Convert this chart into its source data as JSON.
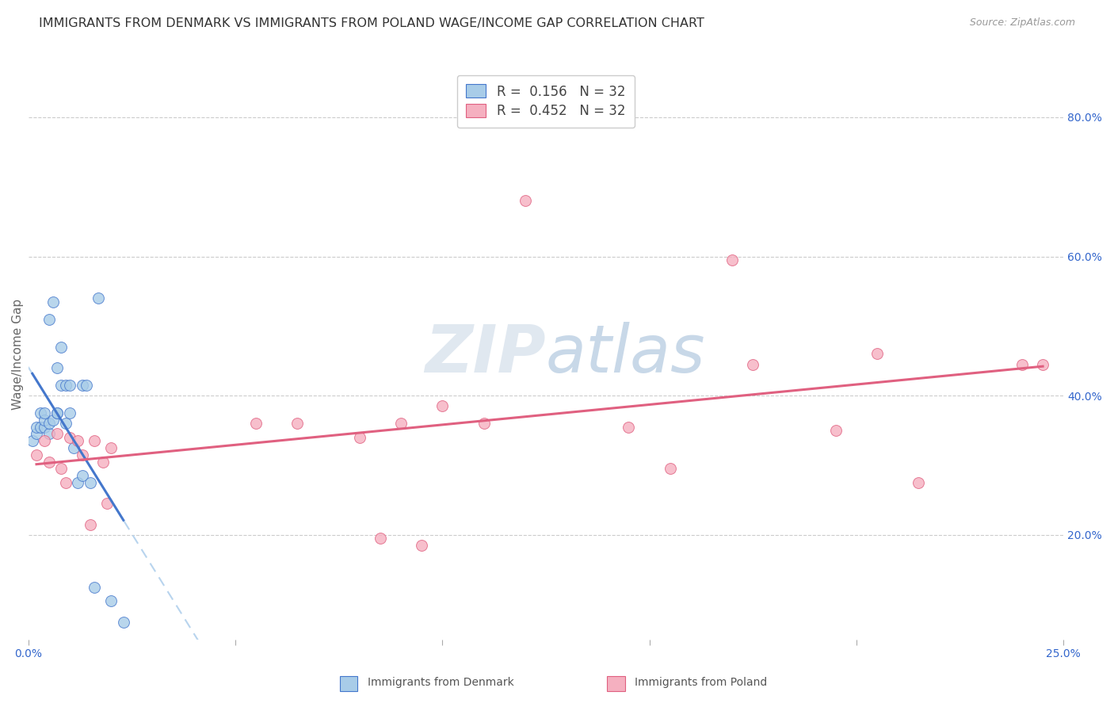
{
  "title": "IMMIGRANTS FROM DENMARK VS IMMIGRANTS FROM POLAND WAGE/INCOME GAP CORRELATION CHART",
  "source": "Source: ZipAtlas.com",
  "ylabel": "Wage/Income Gap",
  "xlim": [
    0.0,
    0.25
  ],
  "ylim": [
    0.05,
    0.87
  ],
  "xticks": [
    0.0,
    0.05,
    0.1,
    0.15,
    0.2,
    0.25
  ],
  "xtick_labels": [
    "0.0%",
    "",
    "",
    "",
    "",
    "25.0%"
  ],
  "yticks_right": [
    0.2,
    0.4,
    0.6,
    0.8
  ],
  "ytick_right_labels": [
    "20.0%",
    "40.0%",
    "60.0%",
    "80.0%"
  ],
  "denmark_R": 0.156,
  "denmark_N": 32,
  "poland_R": 0.452,
  "poland_N": 32,
  "denmark_color": "#a8cce8",
  "poland_color": "#f5b0c0",
  "trend_denmark_color": "#4477cc",
  "trend_poland_color": "#e06080",
  "trend_dashed_color": "#b8d4ee",
  "legend_denmark_label": "Immigrants from Denmark",
  "legend_poland_label": "Immigrants from Poland",
  "denmark_x": [
    0.001,
    0.002,
    0.002,
    0.003,
    0.003,
    0.004,
    0.004,
    0.004,
    0.005,
    0.005,
    0.005,
    0.006,
    0.006,
    0.007,
    0.007,
    0.007,
    0.008,
    0.008,
    0.009,
    0.009,
    0.01,
    0.01,
    0.011,
    0.012,
    0.013,
    0.013,
    0.014,
    0.015,
    0.016,
    0.017,
    0.02,
    0.023
  ],
  "denmark_y": [
    0.335,
    0.345,
    0.355,
    0.355,
    0.375,
    0.355,
    0.365,
    0.375,
    0.345,
    0.36,
    0.51,
    0.365,
    0.535,
    0.375,
    0.375,
    0.44,
    0.415,
    0.47,
    0.36,
    0.415,
    0.375,
    0.415,
    0.325,
    0.275,
    0.285,
    0.415,
    0.415,
    0.275,
    0.125,
    0.54,
    0.105,
    0.075
  ],
  "poland_x": [
    0.002,
    0.004,
    0.005,
    0.007,
    0.008,
    0.009,
    0.01,
    0.012,
    0.013,
    0.015,
    0.016,
    0.018,
    0.019,
    0.02,
    0.055,
    0.065,
    0.08,
    0.085,
    0.09,
    0.095,
    0.1,
    0.11,
    0.12,
    0.145,
    0.155,
    0.17,
    0.175,
    0.195,
    0.205,
    0.215,
    0.24,
    0.245
  ],
  "poland_y": [
    0.315,
    0.335,
    0.305,
    0.345,
    0.295,
    0.275,
    0.34,
    0.335,
    0.315,
    0.215,
    0.335,
    0.305,
    0.245,
    0.325,
    0.36,
    0.36,
    0.34,
    0.195,
    0.36,
    0.185,
    0.385,
    0.36,
    0.68,
    0.355,
    0.295,
    0.595,
    0.445,
    0.35,
    0.46,
    0.275,
    0.445,
    0.445
  ],
  "background_color": "#ffffff",
  "grid_color": "#cccccc",
  "title_fontsize": 11.5,
  "axis_fontsize": 11,
  "tick_fontsize": 10,
  "marker_size": 100,
  "watermark_text": "ZIP atlas"
}
